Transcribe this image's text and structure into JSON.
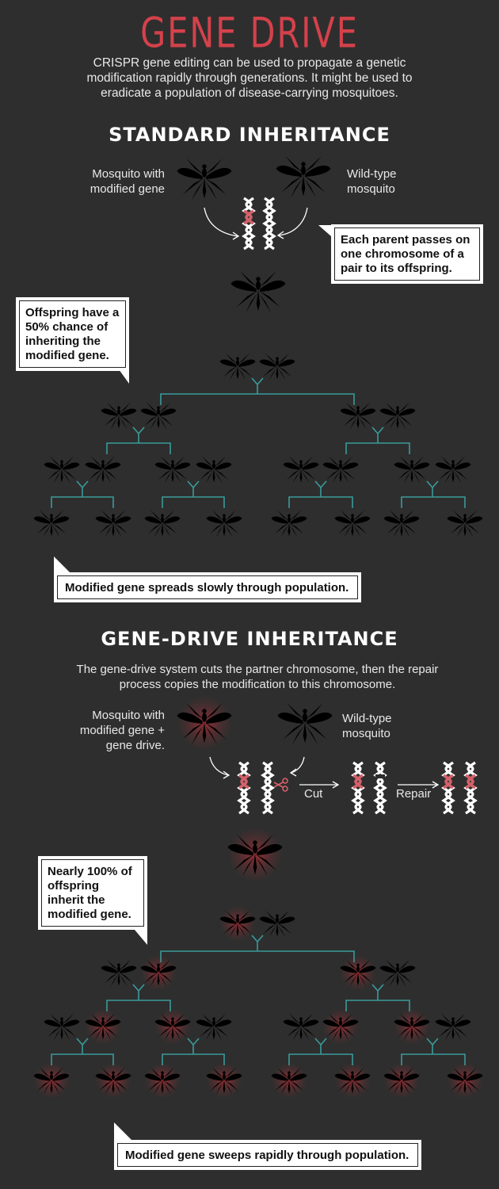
{
  "title": "GENE DRIVE",
  "intro": "CRISPR gene editing can be used to propagate a genetic modification rapidly through generations. It might be used to eradicate a population of disease-carrying mosquitoes.",
  "standard": {
    "heading": "STANDARD INHERITANCE",
    "left_label": "Mosquito with modified gene",
    "right_label": "Wild-type mosquito",
    "callout_parent": "Each parent passes on one chromosome of a pair to its offspring.",
    "callout_offspring": "Offspring have a 50% chance of inheriting the modified gene.",
    "callout_bottom": "Modified gene spreads slowly through population."
  },
  "genedrive": {
    "heading": "GENE-DRIVE INHERITANCE",
    "description": "The gene-drive system cuts the partner chromosome, then the repair process copies the modification to this chromosome.",
    "left_label": "Mosquito with modified gene + gene drive.",
    "right_label": "Wild-type mosquito",
    "cut_label": "Cut",
    "repair_label": "Repair",
    "callout_offspring": "Nearly 100% of offspring inherit the modified gene.",
    "callout_bottom": "Modified gene sweeps rapidly through population."
  },
  "colors": {
    "modified": "#d4606a",
    "wild": "#ffffff",
    "line": "#3a9a9a",
    "background": "#2e2e2e",
    "title": "#d4414b"
  }
}
